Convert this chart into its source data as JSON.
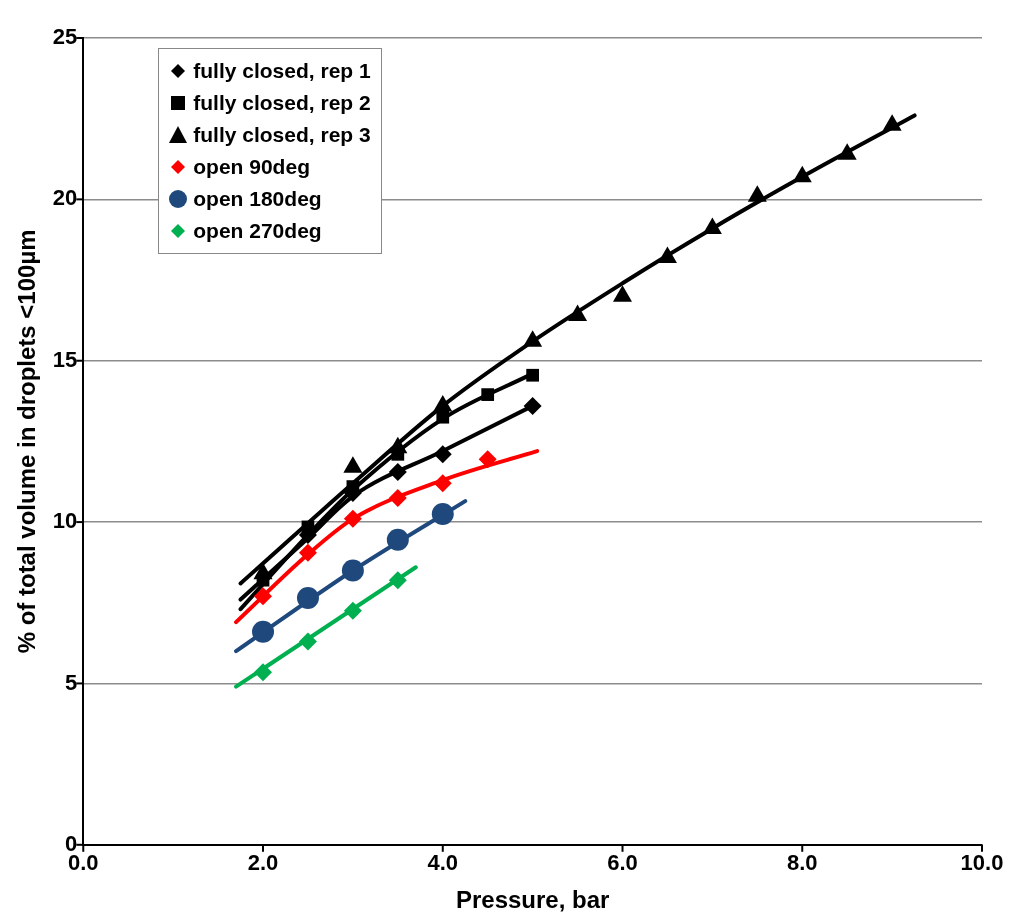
{
  "chart_data": {
    "type": "scatter",
    "xlabel": "Pressure, bar",
    "ylabel": "% of total volume in droplets <100µm",
    "xlim": [
      0,
      10
    ],
    "xticks": [
      {
        "value": 0,
        "label": "0.0"
      },
      {
        "value": 2,
        "label": "2.0"
      },
      {
        "value": 4,
        "label": "4.0"
      },
      {
        "value": 6,
        "label": "6.0"
      },
      {
        "value": 8,
        "label": "8.0"
      },
      {
        "value": 10,
        "label": "10.0"
      }
    ],
    "ylim": [
      0,
      25
    ],
    "yticks": [
      0,
      5,
      10,
      15,
      20,
      25
    ],
    "grid": "y",
    "legend": "top left",
    "series": [
      {
        "name": "fully closed, rep 1",
        "type": "scatter",
        "marker": "diamond",
        "color": "#000000",
        "x": [
          2.5,
          3,
          3.5,
          4,
          5
        ],
        "values": [
          9.6,
          10.9,
          11.55,
          12.1,
          13.6
        ]
      },
      {
        "name": "fully closed, rep 2",
        "type": "scatter",
        "marker": "square",
        "color": "#000000",
        "x": [
          2,
          2.5,
          3,
          3.5,
          4,
          4.5,
          5
        ],
        "values": [
          8.2,
          9.85,
          11.1,
          12.1,
          13.25,
          13.95,
          14.55
        ]
      },
      {
        "name": "fully closed, rep 3",
        "type": "scatter",
        "marker": "triangle",
        "color": "#000000",
        "x": [
          2,
          3,
          3.5,
          4,
          5,
          5.5,
          6,
          6.5,
          7,
          7.5,
          8,
          8.5,
          9
        ],
        "values": [
          8.4,
          11.7,
          12.3,
          13.6,
          15.6,
          16.4,
          17.0,
          18.2,
          19.1,
          20.1,
          20.7,
          21.4,
          22.3
        ]
      },
      {
        "name": "open 90deg",
        "type": "scatter",
        "marker": "diamond",
        "color": "#ff0000",
        "x": [
          2,
          2.5,
          3,
          3.5,
          4,
          4.5
        ],
        "values": [
          7.7,
          9.05,
          10.1,
          10.75,
          11.2,
          11.95
        ]
      },
      {
        "name": "open 180deg",
        "type": "scatter",
        "marker": "circle",
        "color": "#1f497d",
        "x": [
          2,
          2.5,
          3,
          3.5,
          4
        ],
        "values": [
          6.6,
          7.65,
          8.5,
          9.45,
          10.25
        ]
      },
      {
        "name": "open 270deg",
        "type": "scatter",
        "marker": "diamond",
        "color": "#00b050",
        "x": [
          2,
          2.5,
          3,
          3.5
        ],
        "values": [
          5.35,
          6.3,
          7.25,
          8.2
        ]
      },
      {
        "type": "line",
        "marker": "none",
        "color": "#000000",
        "x": [
          1.75,
          2.5,
          3,
          4,
          5
        ],
        "values": [
          7.6,
          9.5,
          10.8,
          12.2,
          13.6
        ]
      },
      {
        "type": "line",
        "marker": "none",
        "color": "#000000",
        "x": [
          1.75,
          2.5,
          3,
          4,
          5
        ],
        "values": [
          7.3,
          9.6,
          11.0,
          13.2,
          14.6
        ]
      },
      {
        "type": "line",
        "marker": "none",
        "color": "#000000",
        "x": [
          1.75,
          3,
          4,
          5,
          6,
          7,
          8,
          9.25
        ],
        "values": [
          8.1,
          11.2,
          13.6,
          15.6,
          17.4,
          19.1,
          20.7,
          22.6
        ]
      },
      {
        "type": "line",
        "marker": "none",
        "color": "#ff0000",
        "x": [
          1.7,
          2.5,
          3,
          4,
          5.05
        ],
        "values": [
          6.9,
          9.0,
          10.1,
          11.3,
          12.2
        ]
      },
      {
        "type": "line",
        "marker": "none",
        "color": "#1f497d",
        "x": [
          1.7,
          3,
          4.25
        ],
        "values": [
          6.0,
          8.5,
          10.65
        ]
      },
      {
        "type": "line",
        "marker": "none",
        "color": "#00b050",
        "x": [
          1.7,
          3.7
        ],
        "values": [
          4.9,
          8.6
        ]
      }
    ]
  }
}
